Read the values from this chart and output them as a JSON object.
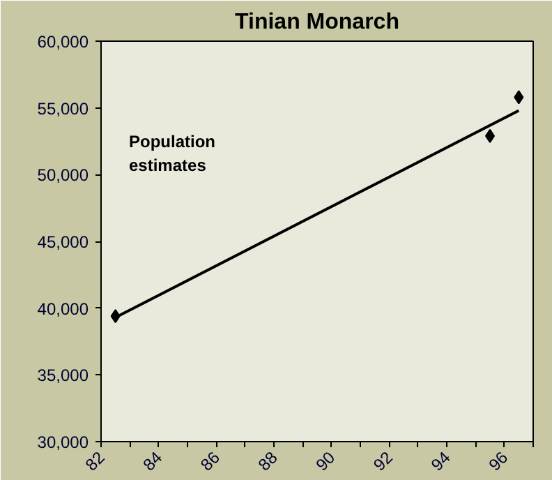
{
  "chart_data": {
    "type": "scatter",
    "title": "Tinian Monarch",
    "annotations": [
      "Population\nestimates"
    ],
    "series": [
      {
        "color": "#000000",
        "x": [
          82.5,
          95.5,
          96.5
        ],
        "values": [
          39400,
          52900,
          55800
        ],
        "marker": "diamond"
      },
      {
        "type": "line",
        "color": "#000000",
        "x": [
          82.5,
          96.5
        ],
        "values": [
          39300,
          54800
        ],
        "marker": "none",
        "line_style": "solid"
      }
    ],
    "xlim": [
      82,
      97
    ],
    "xticks": [
      82,
      {
        "value": 83,
        "label": null
      },
      84,
      {
        "value": 85,
        "label": null
      },
      86,
      {
        "value": 87,
        "label": null
      },
      88,
      {
        "value": 89,
        "label": null
      },
      90,
      {
        "value": 91,
        "label": null
      },
      92,
      {
        "value": 93,
        "label": null
      },
      94,
      {
        "value": 95,
        "label": null
      },
      96,
      {
        "value": 97,
        "label": null
      }
    ],
    "ylim": [
      30000,
      60000
    ],
    "yticks": [
      {
        "value": 30000,
        "label": "30,000"
      },
      {
        "value": 35000,
        "label": "35,000"
      },
      {
        "value": 40000,
        "label": "40,000"
      },
      {
        "value": 45000,
        "label": "45,000"
      },
      {
        "value": 50000,
        "label": "50,000"
      },
      {
        "value": 55000,
        "label": "55,000"
      },
      {
        "value": 60000,
        "label": "60,000"
      }
    ],
    "grid": false
  }
}
